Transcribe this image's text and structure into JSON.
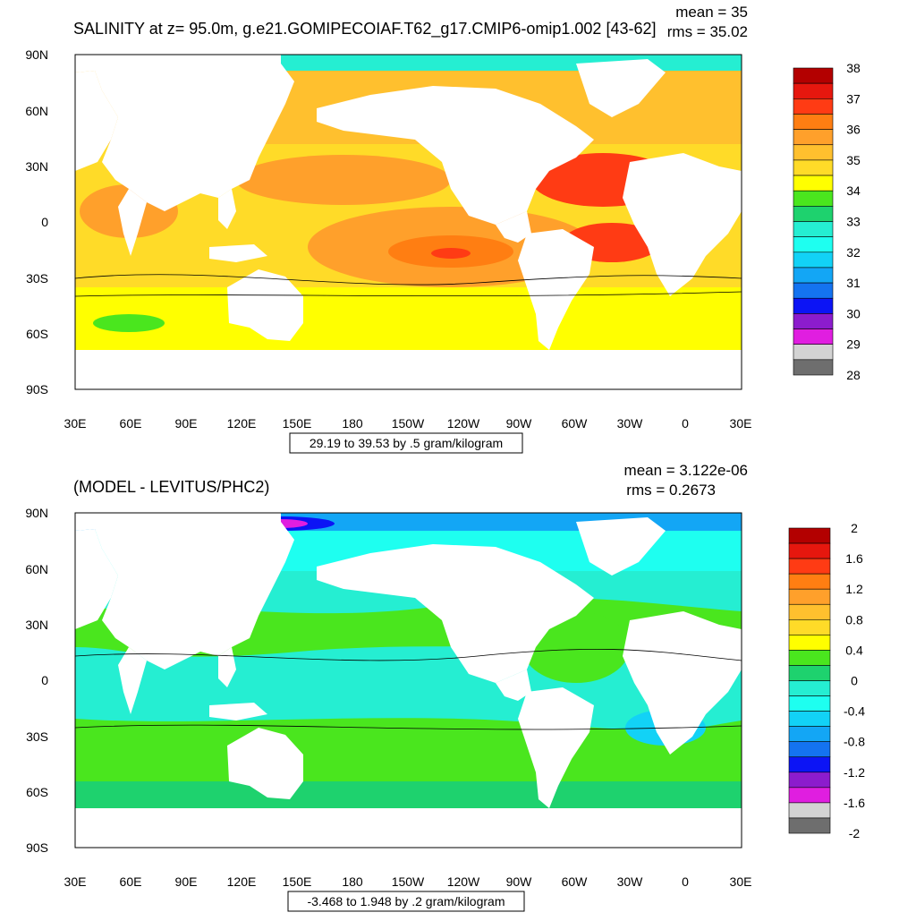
{
  "top": {
    "title": "SALINITY at z=  95.0m, g.e21.GOMIPECOIAF.T62_g17.CMIP6-omip1.002 [43-62]",
    "mean_text": "mean = 35",
    "rms_text": "rms = 35.02",
    "footer": "29.19 to 39.53 by .5 gram/kilogram",
    "colorbar_labels": [
      "38",
      "37",
      "36",
      "35",
      "34",
      "33",
      "32",
      "31",
      "30",
      "29",
      "28"
    ],
    "colorbar_colors": [
      "#b30000",
      "#e6170e",
      "#ff3b14",
      "#ff7e12",
      "#ffa02b",
      "#ffc02e",
      "#ffdb28",
      "#ffff00",
      "#4ae61e",
      "#1ed26e",
      "#25eed2",
      "#1efff0",
      "#12d2f6",
      "#13a6f5",
      "#1473f0",
      "#0c14f5",
      "#8c1ccd",
      "#e01ee0",
      "#d3d3d3",
      "#6e6e6e"
    ],
    "ocean_base_color": "#ffe61a"
  },
  "bottom": {
    "title": "(MODEL - LEVITUS/PHC2)",
    "mean_text": "mean = 3.122e-06",
    "rms_text": "rms = 0.2673",
    "footer": "-3.468 to 1.948 by .2 gram/kilogram",
    "colorbar_labels": [
      "2",
      "1.6",
      "1.2",
      "0.8",
      "0.4",
      "0",
      "-0.4",
      "-0.8",
      "-1.2",
      "-1.6",
      "-2"
    ],
    "colorbar_colors": [
      "#b30000",
      "#e6170e",
      "#ff3b14",
      "#ff7e12",
      "#ffa02b",
      "#ffc02e",
      "#ffdb28",
      "#ffff00",
      "#4ae61e",
      "#1ed26e",
      "#25eed2",
      "#1efff0",
      "#12d2f6",
      "#13a6f5",
      "#1473f0",
      "#0c14f5",
      "#8c1ccd",
      "#e01ee0",
      "#d3d3d3",
      "#6e6e6e"
    ],
    "ocean_base_color": "#22ee88"
  },
  "axes": {
    "lat_labels": [
      "90N",
      "60N",
      "30N",
      "0",
      "30S",
      "60S",
      "90S"
    ],
    "lon_labels": [
      "30E",
      "60E",
      "90E",
      "120E",
      "150E",
      "180",
      "150W",
      "120W",
      "90W",
      "60W",
      "30W",
      "0",
      "30E"
    ]
  }
}
